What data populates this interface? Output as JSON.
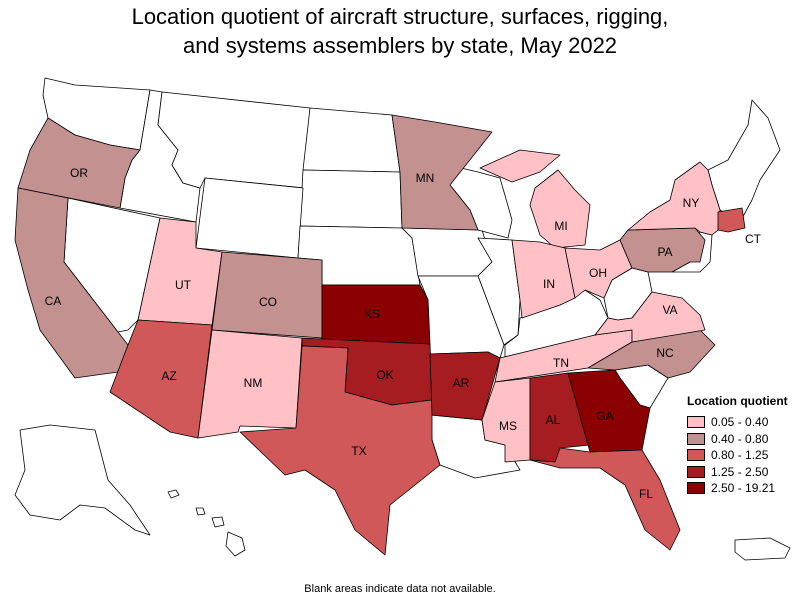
{
  "title_line1": "Location quotient of aircraft structure, surfaces, rigging,",
  "title_line2": "and systems assemblers by state, May 2022",
  "legend": {
    "title": "Location quotient",
    "items": [
      {
        "range": "0.05 - 0.40",
        "color": "#ffc0c6"
      },
      {
        "range": "0.40 - 0.80",
        "color": "#c29190"
      },
      {
        "range": "0.80 - 1.25",
        "color": "#d05859"
      },
      {
        "range": "1.25 - 2.50",
        "color": "#a51d20"
      },
      {
        "range": "2.50 - 19.21",
        "color": "#8b0000"
      }
    ]
  },
  "no_data_color": "#ffffff",
  "labels": {
    "OR": "OR",
    "CA": "CA",
    "MN": "MN",
    "MI": "MI",
    "NY": "NY",
    "CT": "CT",
    "PA": "PA",
    "UT": "UT",
    "CO": "CO",
    "KS": "KS",
    "IN": "IN",
    "OH": "OH",
    "VA": "VA",
    "AZ": "AZ",
    "NM": "NM",
    "OK": "OK",
    "AR": "AR",
    "TN": "TN",
    "NC": "NC",
    "TX": "TX",
    "MS": "MS",
    "AL": "AL",
    "GA": "GA",
    "FL": "FL"
  },
  "footnote": "Blank areas indicate data not available."
}
